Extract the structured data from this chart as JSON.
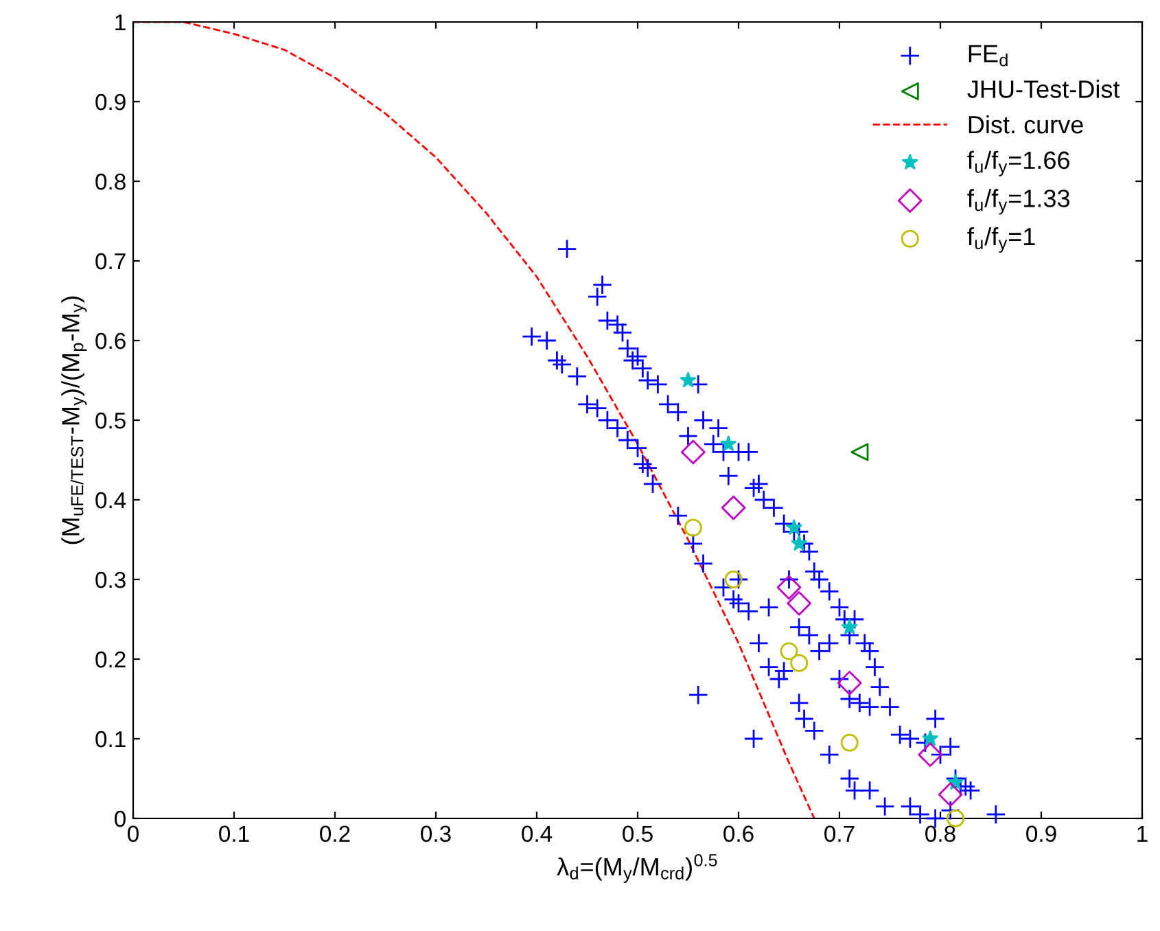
{
  "chart_data": {
    "type": "scatter",
    "xlabel": "λ$_{d}$=(M$_{y}$/M$_{crd}$)$^{0.5}$",
    "ylabel": "(M$_{uFE/TEST}$-M$_{y}$)/(M$_{p}$-M$_{y}$)",
    "xlim": [
      0,
      1
    ],
    "ylim": [
      0,
      1
    ],
    "xticks": [
      0,
      0.1,
      0.2,
      0.3,
      0.4,
      0.5,
      0.6,
      0.7,
      0.8,
      0.9,
      1
    ],
    "yticks": [
      0,
      0.1,
      0.2,
      0.3,
      0.4,
      0.5,
      0.6,
      0.7,
      0.8,
      0.9,
      1
    ],
    "grid": false,
    "legend": "top right",
    "series": [
      {
        "name": "FE$_{d}$",
        "marker": "cross",
        "color": "#0000ff",
        "x": [
          0.395,
          0.41,
          0.42,
          0.425,
          0.44,
          0.45,
          0.46,
          0.47,
          0.48,
          0.49,
          0.5,
          0.505,
          0.51,
          0.515,
          0.54,
          0.555,
          0.565,
          0.585,
          0.595,
          0.6,
          0.61,
          0.62,
          0.63,
          0.64,
          0.645,
          0.66,
          0.665,
          0.675,
          0.69,
          0.71,
          0.715,
          0.73,
          0.745,
          0.77,
          0.78,
          0.795,
          0.56,
          0.615,
          0.43,
          0.46,
          0.465,
          0.47,
          0.48,
          0.485,
          0.49,
          0.495,
          0.5,
          0.505,
          0.51,
          0.52,
          0.53,
          0.54,
          0.55,
          0.56,
          0.565,
          0.575,
          0.58,
          0.585,
          0.59,
          0.6,
          0.61,
          0.615,
          0.62,
          0.625,
          0.635,
          0.645,
          0.655,
          0.66,
          0.665,
          0.67,
          0.675,
          0.68,
          0.69,
          0.7,
          0.705,
          0.71,
          0.715,
          0.725,
          0.73,
          0.735,
          0.74,
          0.75,
          0.76,
          0.77,
          0.785,
          0.795,
          0.8,
          0.81,
          0.815,
          0.82,
          0.825,
          0.83,
          0.855,
          0.81,
          0.6,
          0.63,
          0.65,
          0.66,
          0.67,
          0.68,
          0.69,
          0.7,
          0.71,
          0.72,
          0.73
        ],
        "values": [
          0.605,
          0.6,
          0.575,
          0.57,
          0.555,
          0.52,
          0.515,
          0.5,
          0.49,
          0.475,
          0.465,
          0.445,
          0.44,
          0.42,
          0.38,
          0.345,
          0.32,
          0.29,
          0.275,
          0.27,
          0.26,
          0.22,
          0.19,
          0.175,
          0.185,
          0.145,
          0.125,
          0.11,
          0.08,
          0.05,
          0.035,
          0.035,
          0.015,
          0.015,
          0.005,
          0.0,
          0.155,
          0.1,
          0.715,
          0.655,
          0.67,
          0.625,
          0.62,
          0.61,
          0.59,
          0.575,
          0.58,
          0.565,
          0.55,
          0.545,
          0.52,
          0.51,
          0.48,
          0.545,
          0.5,
          0.47,
          0.49,
          0.46,
          0.43,
          0.46,
          0.46,
          0.415,
          0.42,
          0.4,
          0.39,
          0.37,
          0.36,
          0.36,
          0.345,
          0.335,
          0.31,
          0.3,
          0.285,
          0.265,
          0.25,
          0.23,
          0.25,
          0.22,
          0.21,
          0.19,
          0.165,
          0.14,
          0.105,
          0.1,
          0.095,
          0.125,
          0.08,
          0.09,
          0.05,
          0.04,
          0.04,
          0.035,
          0.005,
          0.01,
          0.3,
          0.265,
          0.3,
          0.24,
          0.23,
          0.21,
          0.22,
          0.175,
          0.15,
          0.145,
          0.14
        ]
      },
      {
        "name": "JHU-Test-Dist",
        "marker": "triangle",
        "color": "#008000",
        "x": [
          0.72
        ],
        "values": [
          0.46
        ]
      },
      {
        "name": "Dist. curve",
        "type": "line",
        "marker": "none",
        "line_style": "dashed",
        "color": "#ff0000",
        "x": [
          0,
          0.05,
          0.1,
          0.15,
          0.2,
          0.25,
          0.3,
          0.35,
          0.4,
          0.45,
          0.5,
          0.55,
          0.6,
          0.65,
          0.675
        ],
        "values": [
          1,
          1,
          0.985,
          0.965,
          0.93,
          0.885,
          0.83,
          0.76,
          0.68,
          0.58,
          0.47,
          0.35,
          0.22,
          0.07,
          0.0
        ]
      },
      {
        "name": "f$_{u}$/f$_{y}$=1.66",
        "marker": "star",
        "color": "#00bfbf",
        "x": [
          0.55,
          0.59,
          0.655,
          0.66,
          0.71,
          0.79,
          0.815
        ],
        "values": [
          0.55,
          0.47,
          0.365,
          0.345,
          0.24,
          0.1,
          0.045
        ]
      },
      {
        "name": "f$_{u}$/f$_{y}$=1.33",
        "marker": "diamond",
        "color": "#bf00bf",
        "x": [
          0.555,
          0.595,
          0.65,
          0.66,
          0.71,
          0.79,
          0.81
        ],
        "values": [
          0.46,
          0.39,
          0.29,
          0.27,
          0.17,
          0.08,
          0.03
        ]
      },
      {
        "name": "f$_{u}$/f$_{y}$=1",
        "marker": "circle",
        "color": "#bfbf00",
        "x": [
          0.555,
          0.595,
          0.65,
          0.66,
          0.71,
          0.815
        ],
        "values": [
          0.365,
          0.3,
          0.21,
          0.195,
          0.095,
          0.0
        ]
      }
    ]
  }
}
